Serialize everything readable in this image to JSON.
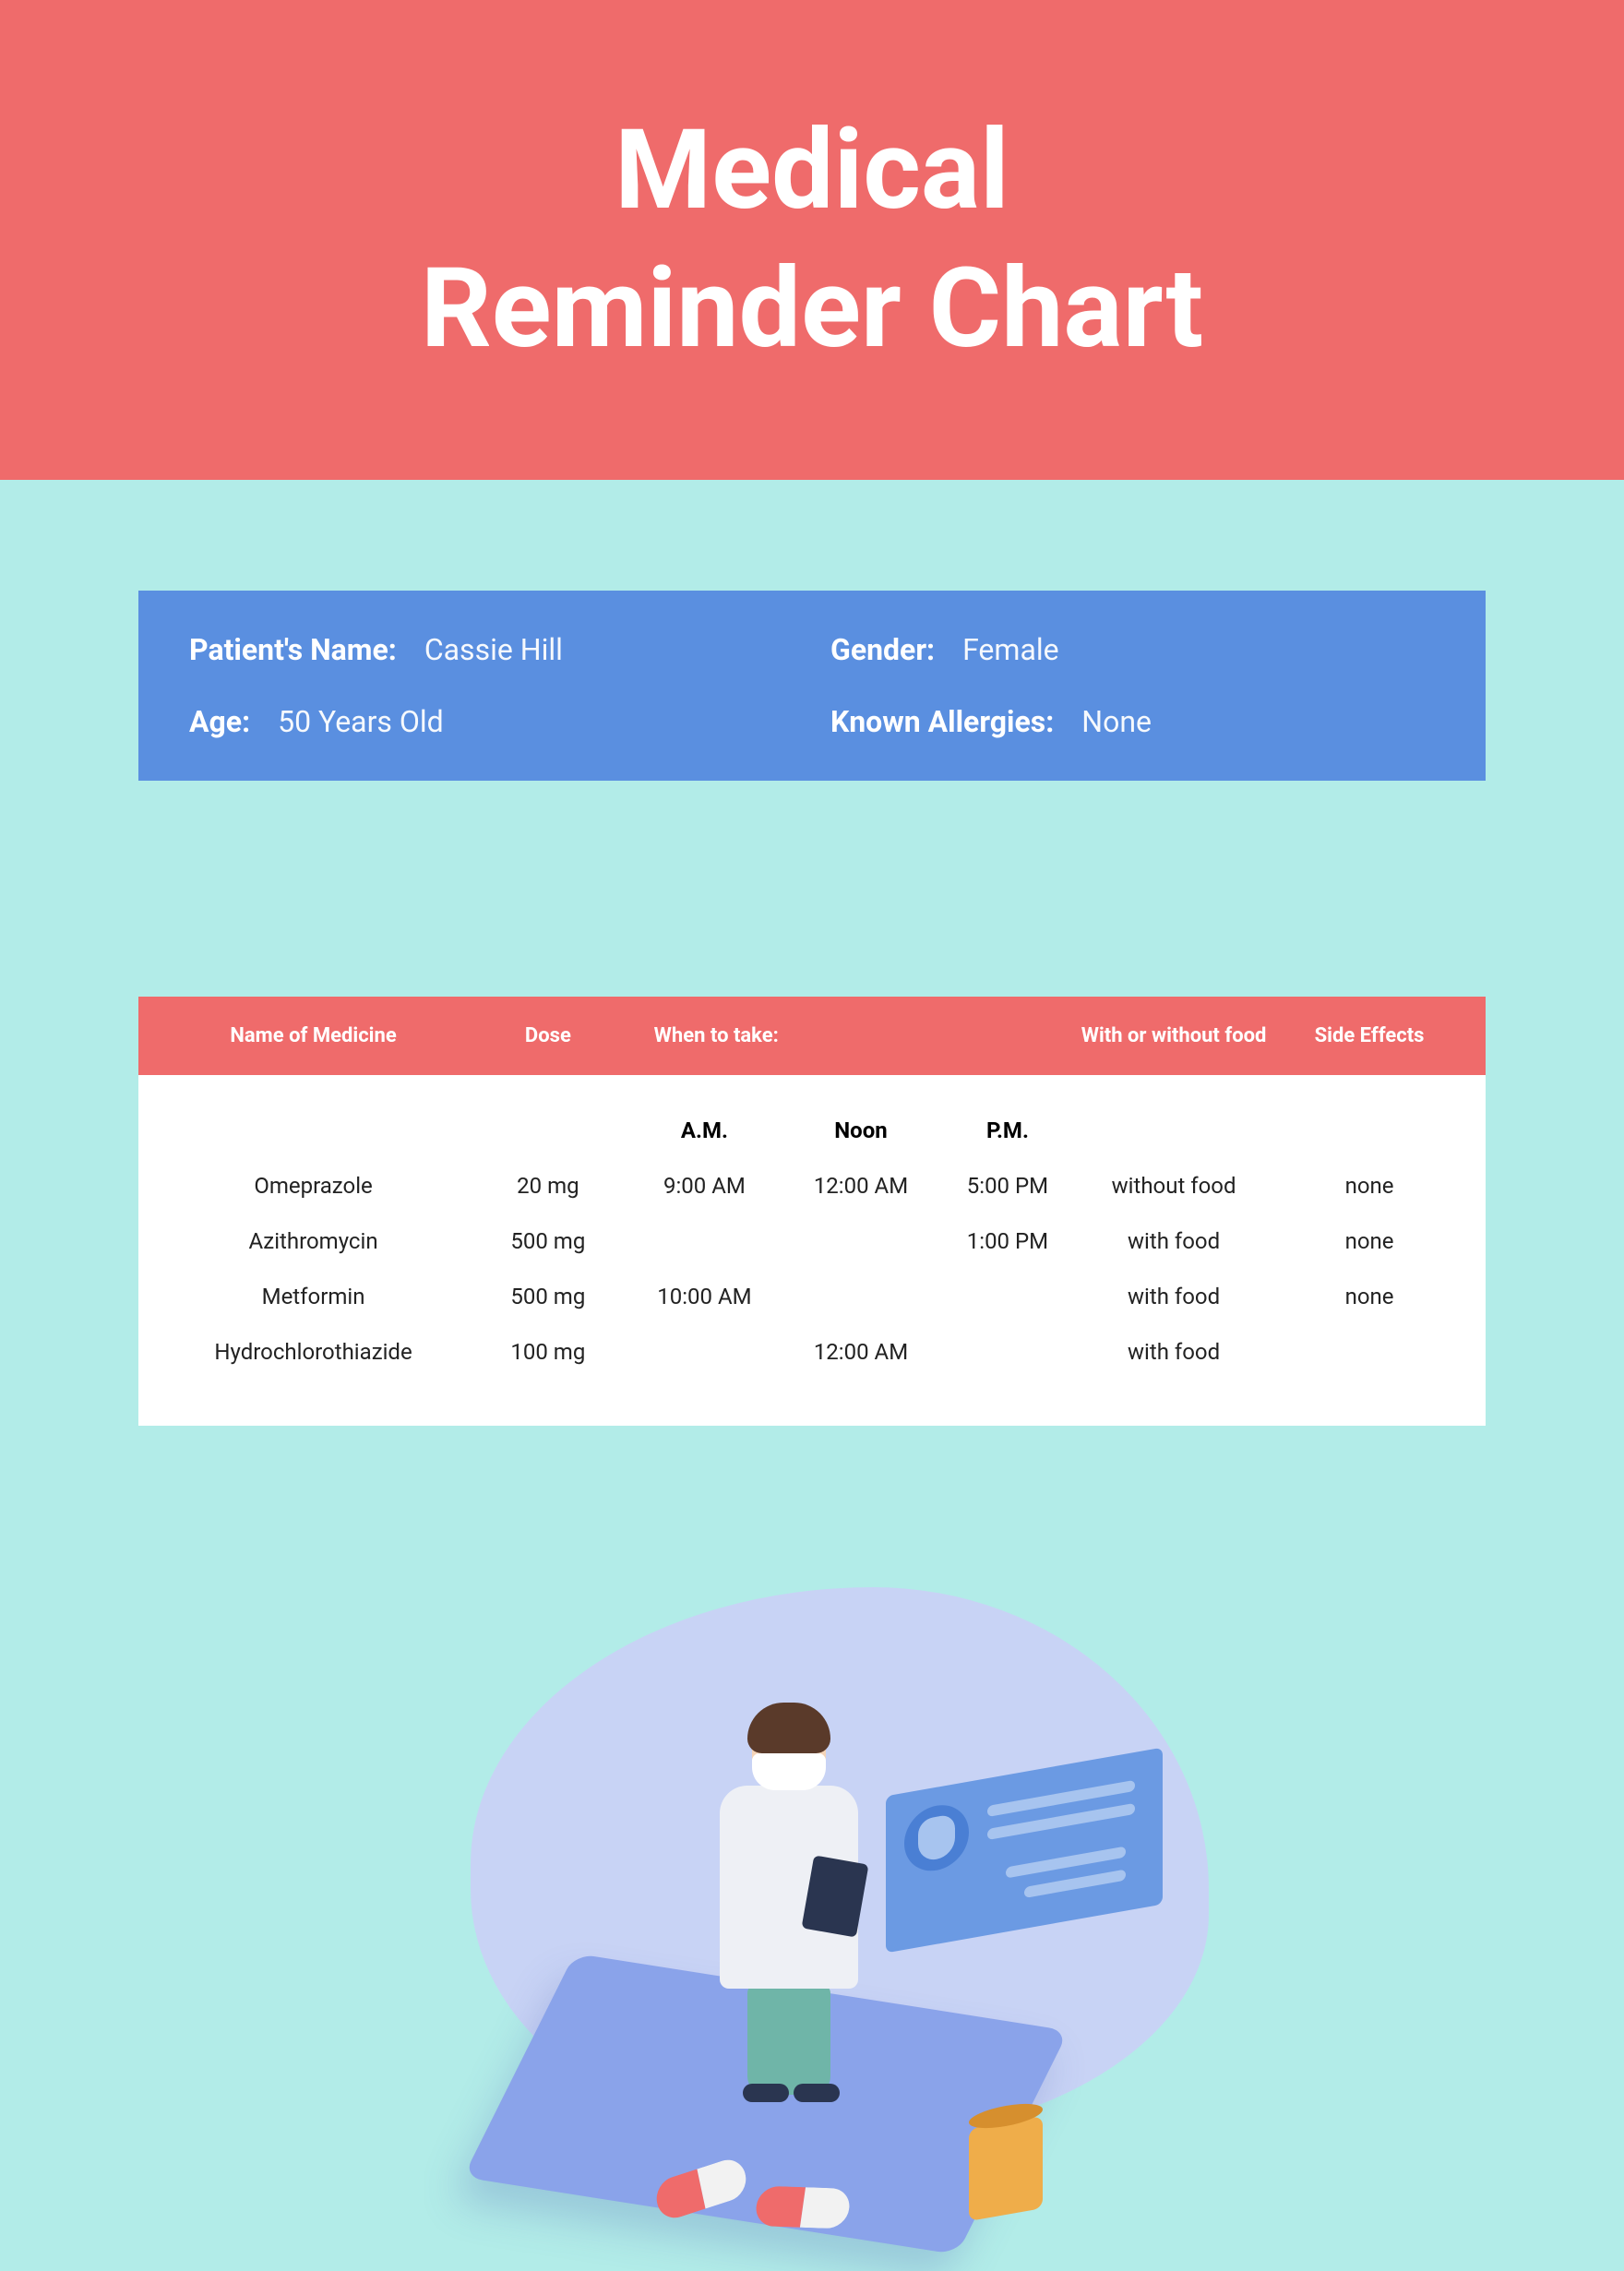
{
  "colors": {
    "header_bg": "#ef6b6b",
    "body_bg": "#b2ece8",
    "patient_card_bg": "#5a8fe0",
    "table_header_bg": "#ef6b6b",
    "table_body_bg": "#ffffff",
    "text_dark": "#222222",
    "text_light": "#ffffff"
  },
  "header": {
    "title_line1": "Medical",
    "title_line2": "Reminder Chart"
  },
  "patient": {
    "name_label": "Patient's Name:",
    "name_value": "Cassie Hill",
    "gender_label": "Gender:",
    "gender_value": "Female",
    "age_label": "Age:",
    "age_value": "50 Years Old",
    "allergies_label": "Known Allergies:",
    "allergies_value": "None"
  },
  "table": {
    "columns": {
      "medicine": "Name of Medicine",
      "dose": "Dose",
      "when": "When to take:",
      "food": "With or without food",
      "side_effects": "Side Effects"
    },
    "subcolumns": {
      "am": "A.M.",
      "noon": "Noon",
      "pm": "P.M."
    },
    "rows": [
      {
        "medicine": "Omeprazole",
        "dose": "20 mg",
        "am": "9:00 AM",
        "noon": "12:00 AM",
        "pm": "5:00 PM",
        "food": "without food",
        "side_effects": "none"
      },
      {
        "medicine": "Azithromycin",
        "dose": "500 mg",
        "am": "",
        "noon": "",
        "pm": "1:00 PM",
        "food": "with food",
        "side_effects": "none"
      },
      {
        "medicine": "Metformin",
        "dose": "500 mg",
        "am": "10:00 AM",
        "noon": "",
        "pm": "",
        "food": "with food",
        "side_effects": "none"
      },
      {
        "medicine": "Hydrochlorothiazide",
        "dose": "100 mg",
        "am": "",
        "noon": "12:00 AM",
        "pm": "",
        "food": "with food",
        "side_effects": ""
      }
    ]
  }
}
